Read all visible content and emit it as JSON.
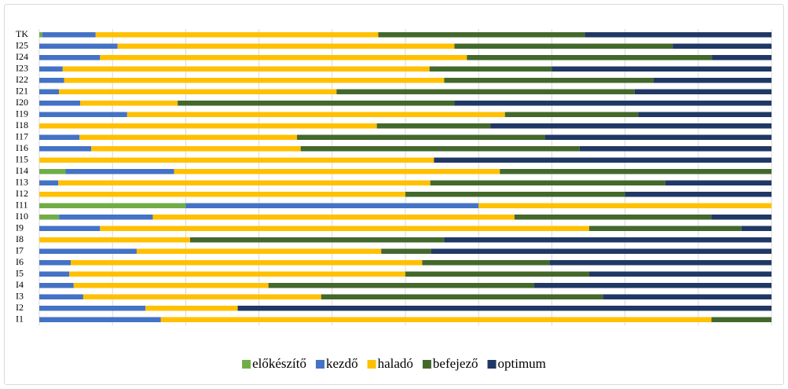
{
  "chart_data": {
    "type": "stacked_barh_100",
    "categories": [
      "TK",
      "I25",
      "I24",
      "I23",
      "I22",
      "I21",
      "I20",
      "I19",
      "I18",
      "I17",
      "I16",
      "I15",
      "I14",
      "I13",
      "I12",
      "I11",
      "I10",
      "I9",
      "I8",
      "I7",
      "I6",
      "I5",
      "I4",
      "I3",
      "I2",
      "I1"
    ],
    "series": [
      {
        "name": "előkészítő",
        "color": "#70ad47",
        "values": [
          0.4,
          0,
          0,
          0,
          0,
          0,
          0,
          0,
          0,
          0,
          0,
          0,
          3.6,
          0,
          0,
          20.0,
          2.7,
          0,
          0,
          0,
          0,
          0,
          0,
          0,
          0,
          0
        ]
      },
      {
        "name": "kezdő",
        "color": "#4472c4",
        "values": [
          7.3,
          10.7,
          8.3,
          3.2,
          3.4,
          2.7,
          5.6,
          12.0,
          0,
          5.5,
          7.1,
          0,
          14.8,
          2.6,
          0,
          40.0,
          12.8,
          8.3,
          0,
          13.3,
          4.3,
          4.1,
          4.7,
          6.0,
          14.5,
          16.6
        ]
      },
      {
        "name": "haladó",
        "color": "#ffc000",
        "values": [
          38.6,
          46.0,
          50.1,
          50.1,
          51.9,
          37.9,
          13.3,
          51.6,
          46.1,
          29.7,
          28.6,
          53.9,
          44.5,
          50.8,
          50.0,
          40.0,
          49.4,
          66.8,
          20.6,
          33.4,
          48.0,
          45.9,
          26.6,
          32.5,
          12.6,
          75.2
        ]
      },
      {
        "name": "befejező",
        "color": "#43682b",
        "values": [
          28.2,
          29.8,
          33.5,
          16.7,
          28.6,
          40.7,
          37.8,
          18.2,
          15.5,
          33.9,
          38.1,
          0,
          37.1,
          32.1,
          30.0,
          0,
          26.9,
          20.8,
          34.7,
          6.8,
          17.4,
          25.1,
          36.3,
          38.5,
          0,
          8.2
        ]
      },
      {
        "name": "optimum",
        "color": "#203864",
        "values": [
          25.5,
          13.5,
          8.1,
          30.0,
          16.1,
          18.7,
          43.3,
          18.2,
          38.4,
          30.9,
          26.2,
          46.1,
          0,
          14.5,
          20.0,
          0,
          8.2,
          4.1,
          44.7,
          46.5,
          30.3,
          24.9,
          32.4,
          23.0,
          72.9,
          0
        ]
      }
    ],
    "xlim": [
      0,
      100
    ],
    "xticks": [
      0,
      10,
      20,
      30,
      40,
      50,
      60,
      70,
      80,
      90,
      100
    ],
    "grid": true,
    "legend": "bottom"
  }
}
